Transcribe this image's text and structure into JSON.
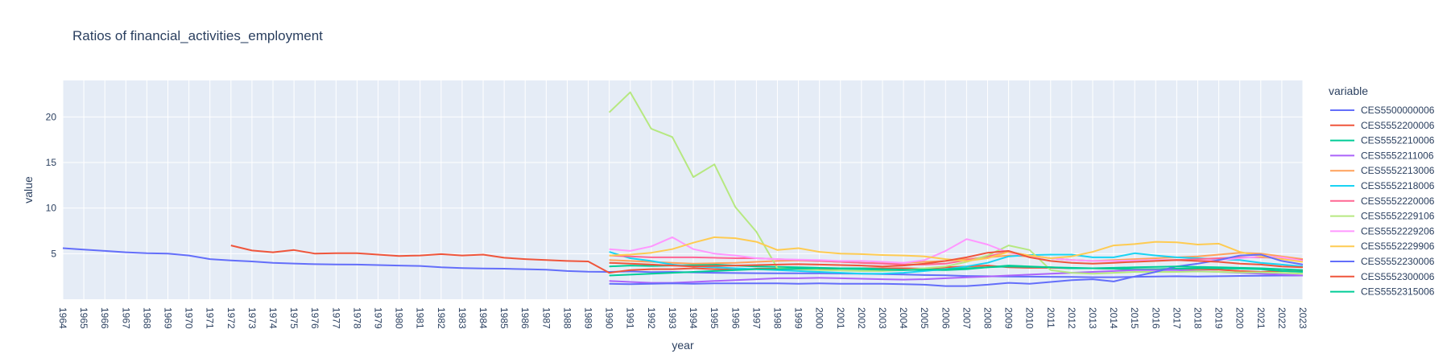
{
  "chart_data": {
    "type": "line",
    "title": "Ratios of financial_activities_employment",
    "xlabel": "year",
    "ylabel": "value",
    "xlim": [
      1964,
      2023
    ],
    "ylim": [
      0,
      24
    ],
    "y_ticks": [
      5,
      10,
      15,
      20
    ],
    "grid": true,
    "legend_title": "variable",
    "legend_position": "right",
    "background_color": "#E5ECF6",
    "series": [
      {
        "name": "CES5500000006",
        "color": "#636EFA",
        "x_start": 1964,
        "values": [
          5.6,
          5.45,
          5.3,
          5.15,
          5.05,
          5.0,
          4.8,
          4.4,
          4.25,
          4.15,
          4.0,
          3.92,
          3.85,
          3.82,
          3.8,
          3.75,
          3.7,
          3.65,
          3.5,
          3.42,
          3.38,
          3.35,
          3.3,
          3.25,
          3.1,
          3.02,
          3.0,
          3.05,
          2.98,
          3.0,
          2.95,
          2.9,
          2.88,
          2.86,
          2.85,
          2.84,
          2.84,
          2.82,
          2.8,
          2.76,
          2.72,
          2.66,
          2.62,
          2.55,
          2.52,
          2.5,
          2.48,
          2.46,
          2.44,
          2.42,
          2.42,
          2.46,
          2.5,
          2.52,
          2.5,
          2.52,
          2.56,
          2.58,
          2.6,
          2.6
        ]
      },
      {
        "name": "CES5552200006",
        "color": "#EF553B",
        "x_start": 1972,
        "values": [
          5.9,
          5.35,
          5.15,
          5.4,
          5.0,
          5.05,
          5.05,
          4.9,
          4.75,
          4.8,
          4.95,
          4.8,
          4.9,
          4.55,
          4.4,
          4.3,
          4.2,
          4.15,
          2.9,
          3.2,
          3.3,
          3.3,
          3.4,
          3.3,
          3.25,
          3.35,
          3.35,
          3.3,
          3.3,
          3.35,
          3.4,
          3.4,
          3.4,
          3.35,
          3.5,
          3.6,
          3.7,
          3.5,
          3.45,
          3.45,
          3.4,
          3.4,
          3.35,
          3.3,
          3.3,
          3.35,
          3.3,
          3.25,
          3.1,
          3.0,
          3.1,
          3.05
        ]
      },
      {
        "name": "CES5552210006",
        "color": "#00CC96",
        "x_start": 1990,
        "values": [
          3.6,
          3.7,
          3.65,
          3.7,
          3.75,
          3.8,
          3.7,
          3.6,
          3.55,
          3.5,
          3.45,
          3.4,
          3.4,
          3.3,
          3.25,
          3.2,
          3.2,
          3.3,
          3.5,
          3.7,
          3.6,
          3.5,
          3.4,
          3.4,
          3.35,
          3.3,
          3.3,
          3.35,
          3.4,
          3.4,
          3.35,
          3.3,
          3.1,
          3.0
        ]
      },
      {
        "name": "CES5552211006",
        "color": "#AB63FA",
        "x_start": 1990,
        "values": [
          2.0,
          1.9,
          1.8,
          1.8,
          1.9,
          2.0,
          2.1,
          2.2,
          2.3,
          2.3,
          2.35,
          2.3,
          2.25,
          2.2,
          2.15,
          2.2,
          2.3,
          2.4,
          2.5,
          2.6,
          2.7,
          2.8,
          2.9,
          3.0,
          3.1,
          3.2,
          3.2,
          3.2,
          3.1,
          3.0,
          2.9,
          2.8,
          2.7,
          2.6
        ]
      },
      {
        "name": "CES5552213006",
        "color": "#FFA15A",
        "x_start": 1990,
        "values": [
          4.3,
          4.2,
          4.1,
          4.0,
          3.9,
          3.95,
          4.0,
          4.1,
          4.2,
          4.25,
          4.2,
          4.1,
          4.0,
          3.95,
          4.0,
          4.1,
          4.2,
          4.4,
          4.6,
          4.8,
          4.7,
          4.5,
          4.3,
          4.2,
          4.3,
          4.4,
          4.5,
          4.6,
          4.7,
          4.9,
          5.1,
          5.0,
          4.7,
          4.4
        ]
      },
      {
        "name": "CES5552218006",
        "color": "#19D3F3",
        "x_start": 1990,
        "values": [
          5.2,
          4.5,
          4.2,
          3.8,
          3.6,
          3.5,
          3.4,
          3.3,
          3.2,
          3.1,
          3.0,
          2.9,
          2.8,
          2.8,
          2.9,
          3.1,
          3.3,
          3.6,
          4.0,
          4.7,
          4.85,
          4.9,
          4.9,
          4.6,
          4.6,
          5.05,
          4.8,
          4.6,
          4.5,
          4.4,
          4.3,
          4.0,
          3.8,
          3.6
        ]
      },
      {
        "name": "CES5552220006",
        "color": "#FF6692",
        "x_start": 1990,
        "values": [
          4.8,
          4.7,
          4.6,
          4.6,
          4.6,
          4.55,
          4.5,
          4.5,
          4.4,
          4.3,
          4.2,
          4.1,
          4.0,
          3.9,
          3.8,
          3.8,
          3.9,
          4.3,
          4.7,
          5.2,
          4.8,
          4.5,
          4.3,
          4.2,
          4.2,
          4.2,
          4.3,
          4.3,
          4.4,
          4.5,
          4.6,
          4.6,
          4.5,
          4.3
        ]
      },
      {
        "name": "CES5552229106",
        "color": "#B6E880",
        "x_start": 1990,
        "values": [
          20.5,
          22.7,
          18.7,
          17.8,
          13.4,
          14.8,
          10.1,
          7.4,
          3.4,
          3.3,
          3.2,
          3.15,
          3.1,
          3.1,
          3.2,
          3.4,
          3.6,
          4.1,
          4.8,
          5.9,
          5.4,
          3.2,
          2.9,
          2.8,
          2.9,
          3.0,
          3.0,
          3.0,
          3.05,
          3.0,
          2.95,
          2.95,
          2.9,
          2.8
        ]
      },
      {
        "name": "CES5552229206",
        "color": "#FF97FF",
        "x_start": 1990,
        "values": [
          5.5,
          5.3,
          5.8,
          6.8,
          5.5,
          5.0,
          4.8,
          4.5,
          4.4,
          4.35,
          4.3,
          4.2,
          4.2,
          4.1,
          4.0,
          4.3,
          5.3,
          6.6,
          6.0,
          5.1,
          4.7,
          4.5,
          4.3,
          4.2,
          4.2,
          4.25,
          4.3,
          4.3,
          4.2,
          4.3,
          4.5,
          4.7,
          4.6,
          4.2
        ]
      },
      {
        "name": "CES5552229906",
        "color": "#FECB52",
        "x_start": 1990,
        "values": [
          4.8,
          4.9,
          5.1,
          5.5,
          6.2,
          6.8,
          6.7,
          6.3,
          5.4,
          5.6,
          5.2,
          5.0,
          4.95,
          4.85,
          4.8,
          4.7,
          4.4,
          4.2,
          4.5,
          5.2,
          4.8,
          4.5,
          4.7,
          5.2,
          5.9,
          6.05,
          6.3,
          6.25,
          6.0,
          6.1,
          5.2,
          4.7,
          4.4,
          4.1
        ]
      },
      {
        "name": "CES5552230006",
        "color": "#636EFA",
        "x_start": 1990,
        "values": [
          1.7,
          1.65,
          1.7,
          1.75,
          1.7,
          1.75,
          1.75,
          1.75,
          1.75,
          1.7,
          1.75,
          1.7,
          1.7,
          1.7,
          1.65,
          1.6,
          1.45,
          1.45,
          1.6,
          1.8,
          1.7,
          1.9,
          2.1,
          2.2,
          1.95,
          2.5,
          3.0,
          3.6,
          3.9,
          4.3,
          4.8,
          4.9,
          4.2,
          3.8
        ]
      },
      {
        "name": "CES5552300006",
        "color": "#EF553B",
        "x_start": 1990,
        "values": [
          4.0,
          3.9,
          3.8,
          3.7,
          3.6,
          3.65,
          3.7,
          3.75,
          3.8,
          3.85,
          3.8,
          3.75,
          3.7,
          3.6,
          3.7,
          3.9,
          4.2,
          4.6,
          5.1,
          5.3,
          4.6,
          4.2,
          4.0,
          3.9,
          4.0,
          4.1,
          4.2,
          4.3,
          4.2,
          4.1,
          3.9,
          3.8,
          3.6,
          3.5
        ]
      },
      {
        "name": "CES5552315006",
        "color": "#00CC96",
        "x_start": 1990,
        "values": [
          2.6,
          2.7,
          2.8,
          2.9,
          3.0,
          3.1,
          3.2,
          3.3,
          3.3,
          3.35,
          3.4,
          3.35,
          3.3,
          3.25,
          3.2,
          3.25,
          3.3,
          3.4,
          3.5,
          3.6,
          3.55,
          3.5,
          3.45,
          3.4,
          3.45,
          3.5,
          3.55,
          3.6,
          3.55,
          3.5,
          3.45,
          3.4,
          3.3,
          3.2
        ]
      }
    ]
  }
}
